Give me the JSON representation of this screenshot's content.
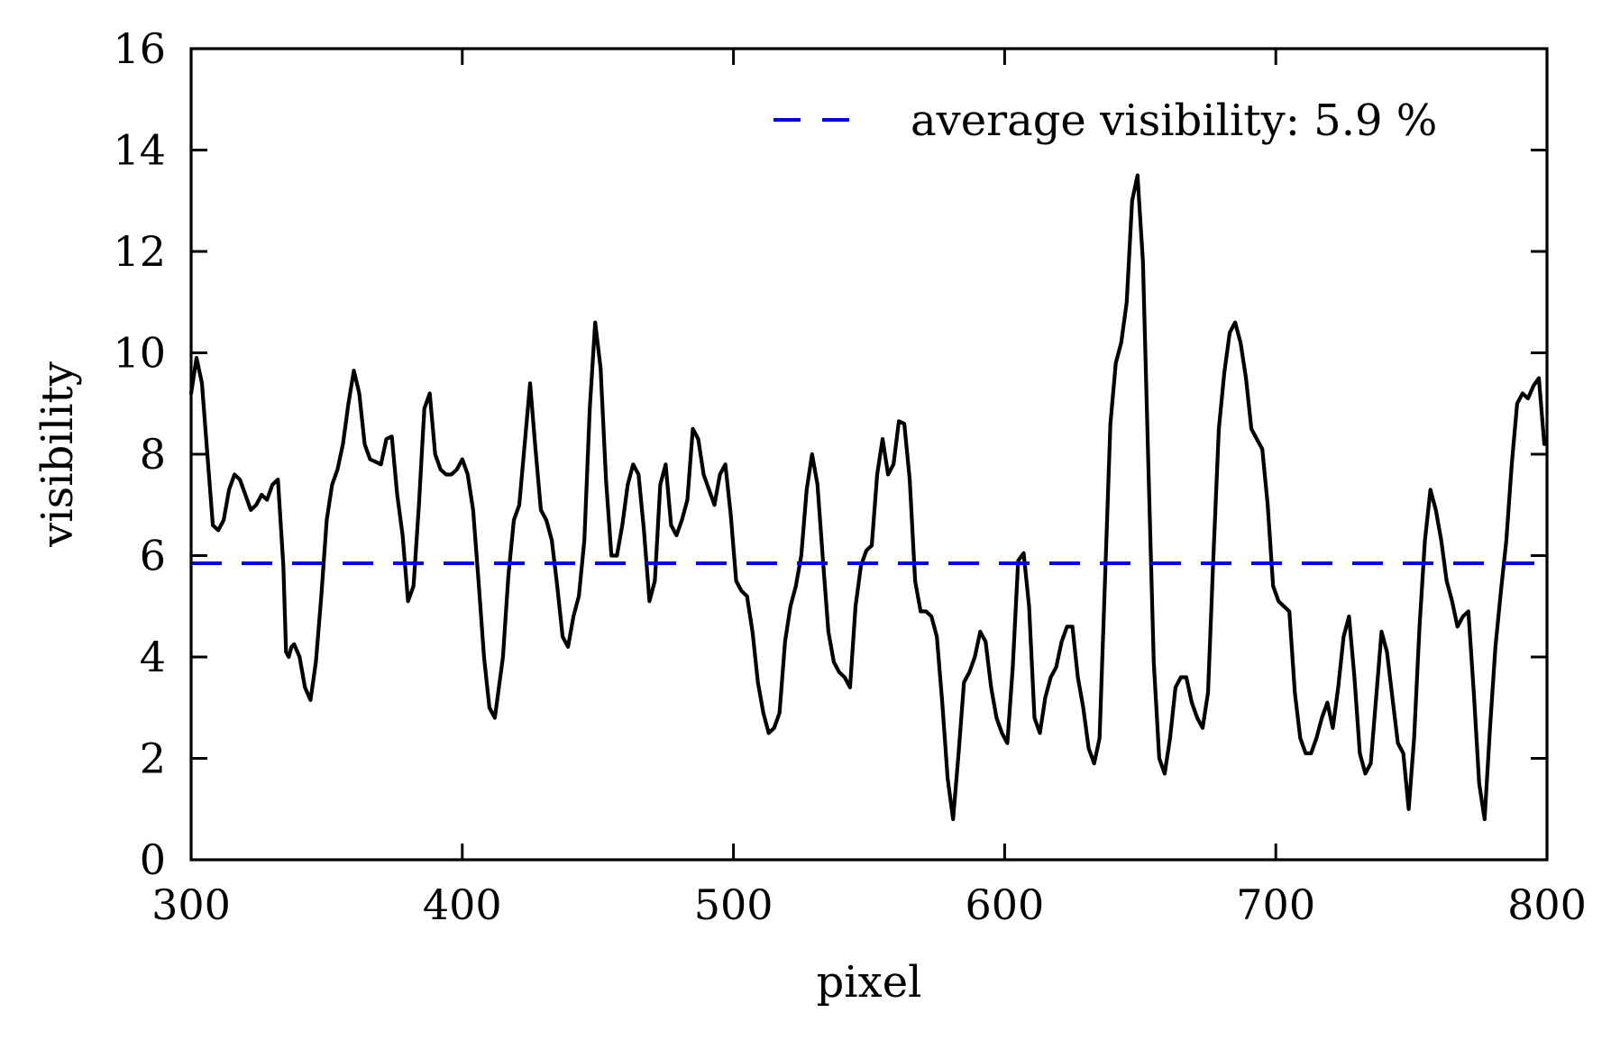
{
  "chart_data": {
    "type": "line",
    "xlabel": "pixel",
    "ylabel": "visibility",
    "xlim": [
      300,
      800
    ],
    "ylim": [
      0,
      16
    ],
    "xticks": [
      "300",
      "400",
      "500",
      "600",
      "700",
      "800"
    ],
    "yticks": [
      "0",
      "2",
      "4",
      "6",
      "8",
      "10",
      "12",
      "14",
      "16"
    ],
    "grid": false,
    "legend_position": "top-right",
    "colors": {
      "series": "#000000",
      "average_line": "#0000ee"
    },
    "average": {
      "label": "average visibility: 5.9 %",
      "value": 5.85
    },
    "series": [
      {
        "x": [
          300,
          302,
          304,
          306,
          308,
          310,
          311,
          312,
          314,
          316,
          318,
          320,
          322,
          324,
          326,
          328,
          330,
          332,
          334,
          335,
          336,
          337,
          338,
          340,
          342,
          344,
          346,
          348,
          350,
          352,
          354,
          356,
          358,
          360,
          362,
          364,
          366,
          368,
          370,
          372,
          374,
          376,
          378,
          380,
          382,
          384,
          386,
          388,
          390,
          392,
          394,
          396,
          398,
          400,
          402,
          404,
          406,
          408,
          410,
          412,
          413,
          415,
          417,
          419,
          421,
          423,
          425,
          427,
          429,
          431,
          433,
          435,
          437,
          439,
          441,
          443,
          445,
          447,
          449,
          451,
          453,
          455,
          457,
          459,
          461,
          463,
          465,
          467,
          469,
          471,
          473,
          475,
          477,
          479,
          481,
          483,
          485,
          487,
          489,
          491,
          493,
          495,
          497,
          499,
          501,
          503,
          505,
          507,
          509,
          511,
          513,
          515,
          517,
          519,
          521,
          523,
          525,
          527,
          529,
          531,
          533,
          535,
          537,
          539,
          541,
          543,
          545,
          547,
          549,
          551,
          553,
          555,
          557,
          559,
          561,
          563,
          565,
          567,
          569,
          571,
          573,
          575,
          577,
          579,
          581,
          583,
          585,
          587,
          589,
          591,
          593,
          595,
          597,
          599,
          601,
          603,
          605,
          607,
          609,
          611,
          613,
          615,
          617,
          619,
          621,
          623,
          625,
          627,
          629,
          631,
          633,
          635,
          637,
          639,
          641,
          643,
          645,
          647,
          649,
          651,
          653,
          655,
          657,
          659,
          661,
          663,
          665,
          667,
          669,
          671,
          673,
          675,
          677,
          679,
          681,
          683,
          685,
          687,
          689,
          691,
          693,
          695,
          697,
          699,
          701,
          703,
          705,
          707,
          709,
          711,
          713,
          715,
          717,
          719,
          721,
          723,
          725,
          727,
          729,
          731,
          733,
          735,
          737,
          739,
          741,
          743,
          745,
          747,
          749,
          751,
          753,
          755,
          757,
          759,
          761,
          763,
          765,
          767,
          769,
          771,
          773,
          775,
          777,
          779,
          781,
          783,
          785,
          787,
          789,
          791,
          793,
          795,
          797,
          799
        ],
        "y": [
          9.2,
          9.9,
          9.4,
          8.0,
          6.6,
          6.5,
          6.6,
          6.7,
          7.3,
          7.6,
          7.5,
          7.2,
          6.9,
          7.0,
          7.2,
          7.1,
          7.4,
          7.5,
          5.8,
          4.1,
          4.0,
          4.2,
          4.25,
          4.0,
          3.4,
          3.15,
          3.9,
          5.2,
          6.7,
          7.4,
          7.7,
          8.2,
          9.0,
          9.65,
          9.2,
          8.2,
          7.9,
          7.85,
          7.8,
          8.3,
          8.35,
          7.2,
          6.4,
          5.1,
          5.4,
          7.0,
          8.9,
          9.2,
          8.0,
          7.7,
          7.6,
          7.6,
          7.7,
          7.9,
          7.6,
          6.9,
          5.5,
          4.0,
          3.0,
          2.8,
          3.2,
          4.0,
          5.6,
          6.7,
          7.0,
          8.2,
          9.4,
          8.1,
          6.9,
          6.7,
          6.3,
          5.4,
          4.4,
          4.2,
          4.8,
          5.2,
          6.3,
          8.9,
          10.6,
          9.7,
          7.5,
          6.0,
          6.0,
          6.6,
          7.4,
          7.8,
          7.6,
          6.5,
          5.1,
          5.5,
          7.4,
          7.8,
          6.6,
          6.4,
          6.7,
          7.1,
          8.5,
          8.3,
          7.6,
          7.3,
          7.0,
          7.6,
          7.8,
          6.8,
          5.5,
          5.3,
          5.2,
          4.5,
          3.5,
          2.9,
          2.5,
          2.6,
          2.9,
          4.3,
          5.0,
          5.4,
          6.0,
          7.3,
          8.0,
          7.4,
          5.9,
          4.5,
          3.9,
          3.7,
          3.6,
          3.4,
          5.0,
          5.8,
          6.1,
          6.2,
          7.6,
          8.3,
          7.6,
          7.8,
          8.65,
          8.6,
          7.5,
          5.5,
          4.9,
          4.9,
          4.8,
          4.4,
          3.1,
          1.6,
          0.8,
          2.1,
          3.5,
          3.7,
          4.0,
          4.5,
          4.3,
          3.4,
          2.8,
          2.5,
          2.3,
          3.8,
          5.9,
          6.05,
          5.0,
          2.8,
          2.5,
          3.2,
          3.6,
          3.8,
          4.3,
          4.6,
          4.6,
          3.6,
          3.0,
          2.2,
          1.9,
          2.4,
          5.5,
          8.6,
          9.8,
          10.2,
          11.0,
          13.0,
          13.5,
          11.8,
          7.8,
          3.9,
          2.0,
          1.7,
          2.4,
          3.4,
          3.6,
          3.6,
          3.1,
          2.8,
          2.6,
          3.3,
          6.0,
          8.5,
          9.6,
          10.4,
          10.6,
          10.2,
          9.5,
          8.5,
          8.3,
          8.1,
          7.0,
          5.4,
          5.1,
          5.0,
          4.9,
          3.3,
          2.4,
          2.1,
          2.1,
          2.4,
          2.8,
          3.1,
          2.6,
          3.4,
          4.4,
          4.8,
          3.6,
          2.1,
          1.7,
          1.9,
          3.2,
          4.5,
          4.1,
          3.2,
          2.3,
          2.1,
          1.0,
          2.4,
          4.6,
          6.3,
          7.3,
          6.9,
          6.3,
          5.5,
          5.1,
          4.6,
          4.8,
          4.9,
          3.3,
          1.5,
          0.8,
          2.6,
          4.2,
          5.3,
          6.3,
          7.8,
          9.0,
          9.2,
          9.1,
          9.35,
          9.5,
          8.2
        ]
      }
    ]
  }
}
